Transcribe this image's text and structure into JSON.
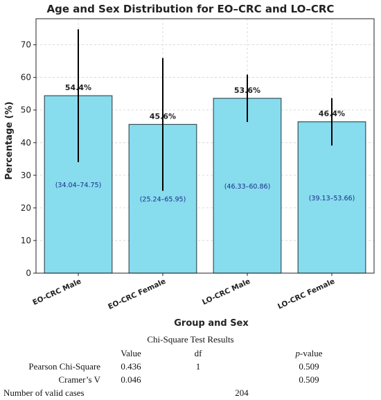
{
  "chart_data": {
    "type": "bar",
    "title": "Age and Sex Distribution for EO–CRC and LO–CRC",
    "xlabel": "Group and Sex",
    "ylabel": "Percentage (%)",
    "ylim": [
      0,
      78
    ],
    "yticks": [
      0,
      10,
      20,
      30,
      40,
      50,
      60,
      70
    ],
    "grid": true,
    "categories": [
      "EO-CRC Male",
      "EO-CRC Female",
      "LO-CRC Male",
      "LO-CRC Female"
    ],
    "values": [
      54.4,
      45.6,
      53.6,
      46.4
    ],
    "value_labels": [
      "54.4%",
      "45.6%",
      "53.6%",
      "46.4%"
    ],
    "ci_low": [
      34.04,
      25.24,
      46.33,
      39.13
    ],
    "ci_high": [
      74.75,
      65.95,
      60.86,
      53.66
    ],
    "ci_labels": [
      "(34.04–74.75)",
      "(25.24–65.95)",
      "(46.33–60.86)",
      "(39.13–53.66)"
    ],
    "bar_color": "#87dcee",
    "bar_edge": "#3a4f55",
    "errorbar_color": "#000000",
    "ci_text_color": "#1a2f8a"
  },
  "stats_table": {
    "title": "Chi-Square Test Results",
    "headers": {
      "value": "Value",
      "df": "df",
      "p_prefix": "p",
      "p_suffix": "-value"
    },
    "rows": [
      {
        "label": "Pearson Chi-Square",
        "value": "0.436",
        "df": "1",
        "p": "0.509"
      },
      {
        "label": "Cramer’s V",
        "value": "0.046",
        "df": "",
        "p": "0.509"
      }
    ],
    "valid_cases_label": "Number of valid cases",
    "valid_cases": "204"
  }
}
